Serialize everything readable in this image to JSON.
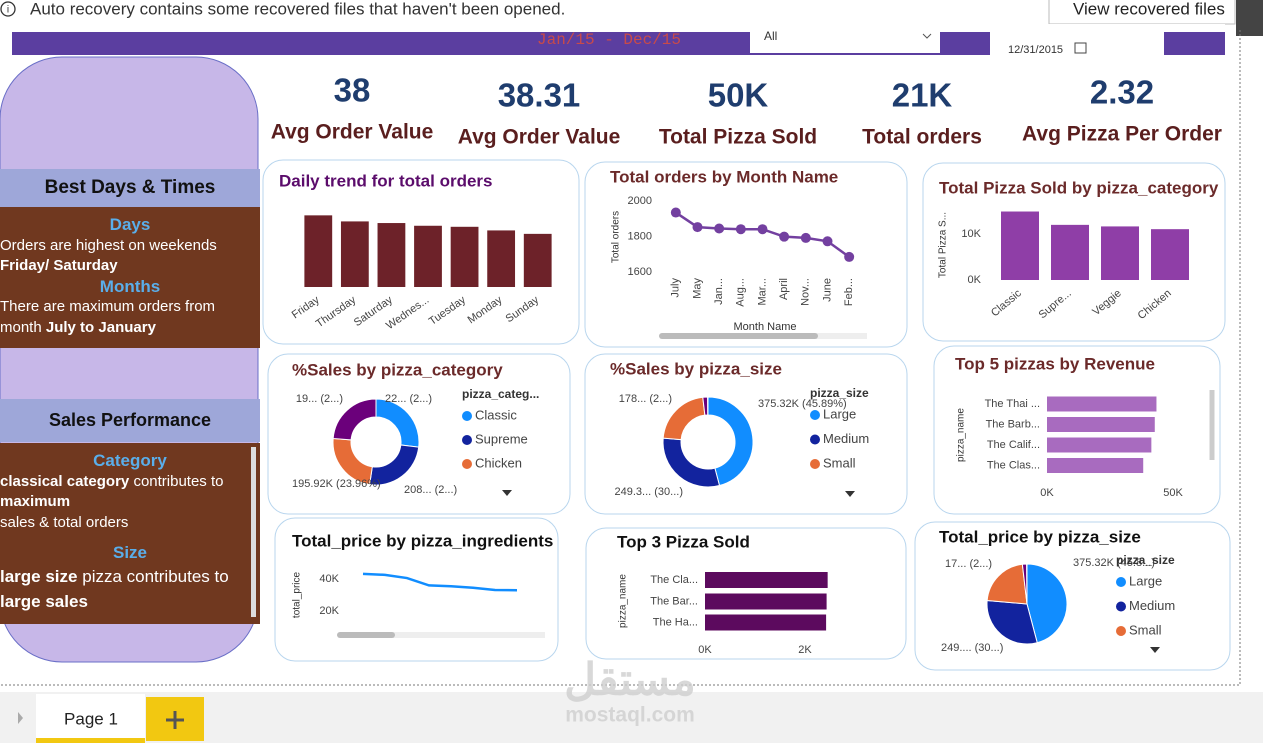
{
  "banner": {
    "message": "Auto recovery contains some recovered files that haven't been opened.",
    "button": "View recovered files"
  },
  "header": {
    "date_range": "Jan/15 - Dec/15",
    "filter": "All",
    "date": "12/31/2015"
  },
  "kpis": [
    {
      "value": "38",
      "label": "Avg Order Value"
    },
    {
      "value": "38.31",
      "label": "Avg Order Value"
    },
    {
      "value": "50K",
      "label": "Total Pizza Sold"
    },
    {
      "value": "21K",
      "label": "Total orders"
    },
    {
      "value": "2.32",
      "label": "Avg Pizza Per Order"
    }
  ],
  "sidebar": {
    "section1": {
      "title": "Best Days & Times",
      "days_heading": "Days",
      "days_text": "Orders are highest on weekends",
      "days_bold": "Friday/ Saturday",
      "months_heading": "Months",
      "months_text": "There are maximum orders from month",
      "months_bold": "July to January"
    },
    "section2": {
      "title": "Sales Performance",
      "category_heading": "Category",
      "category_bold": "classical category",
      "category_text": "contributes to",
      "category_bold2": "maximum",
      "category_text2": "sales & total orders",
      "size_heading": "Size",
      "size_bold": "large size",
      "size_text": "pizza contributes to",
      "size_bold2": "large sales"
    }
  },
  "chart_data": [
    {
      "type": "bar",
      "title": "Daily trend for total orders",
      "categories": [
        "Friday",
        "Thursday",
        "Saturday",
        "Wednes...",
        "Tuesday",
        "Monday",
        "Sunday"
      ],
      "values": [
        3538,
        3239,
        3158,
        3024,
        2973,
        2794,
        2624
      ],
      "ylim": [
        0,
        4000
      ],
      "color": "#6d2229"
    },
    {
      "type": "line",
      "title": "Total orders by Month Name",
      "x_label": "Month Name",
      "y_label": "Total orders",
      "categories": [
        "July",
        "May",
        "Jan...",
        "Aug...",
        "Mar...",
        "April",
        "Nov...",
        "June",
        "Feb..."
      ],
      "values": [
        1935,
        1853,
        1845,
        1841,
        1841,
        1799,
        1792,
        1773,
        1685
      ],
      "ylim": [
        1600,
        2000
      ],
      "yticks": [
        1600,
        1800,
        2000
      ],
      "color": "#7340a0"
    },
    {
      "type": "bar",
      "title": "Total Pizza Sold by pizza_category",
      "y_label": "Total Pizza S...",
      "categories": [
        "Classic",
        "Supre...",
        "Veggie",
        "Chicken"
      ],
      "values": [
        14888,
        11987,
        11649,
        11050
      ],
      "ylim": [
        0,
        15000
      ],
      "yticks": [
        {
          "value": 0,
          "label": "0K"
        },
        {
          "value": 10000,
          "label": "10K"
        }
      ],
      "color": "#8f3ea7"
    },
    {
      "type": "donut",
      "title": "%Sales by pizza_category",
      "legend_title": "pizza_categ...",
      "categories": [
        "Classic",
        "Supreme",
        "Chicken",
        null
      ],
      "values": [
        220053.1,
        208197,
        195919.5,
        193690.45
      ],
      "value_labels": [
        "22... (2...)",
        "208... (2...)",
        "195.92K (23.96%)",
        "19... (2...)"
      ],
      "colors": [
        "#118dff",
        "#12239e",
        "#e66c37",
        "#6b007b"
      ]
    },
    {
      "type": "donut",
      "title": "%Sales by pizza_size",
      "legend_title": "pizza_size",
      "categories": [
        "Large",
        "Medium",
        "Small",
        null,
        null
      ],
      "values": [
        375318.7,
        249382.25,
        178076.5,
        14076,
        1006.6
      ],
      "value_labels": [
        "375.32K (45.89%)",
        "249.3... (30...)",
        "178... (2...)",
        null,
        null
      ],
      "colors": [
        "#118dff",
        "#12239e",
        "#e66c37",
        "#6b007b",
        "#e044a7"
      ]
    },
    {
      "type": "hbar",
      "title": "Top 5 pizzas by Revenue",
      "y_label": "pizza_name",
      "categories": [
        "The Thai ...",
        "The Barb...",
        "The Calif...",
        "The Clas..."
      ],
      "values": [
        43434.25,
        42768,
        41409.5,
        38180.5
      ],
      "xlim": [
        0,
        50000
      ],
      "xticks": [
        {
          "value": 0,
          "label": "0K"
        },
        {
          "value": 50000,
          "label": "50K"
        }
      ],
      "color": "#a86bbf"
    },
    {
      "type": "line",
      "title": "Total_price by pizza_ingredients",
      "y_label": "total_price",
      "categories": [
        null,
        null,
        null,
        null,
        null,
        null,
        null,
        null
      ],
      "values": [
        43200,
        42600,
        40600,
        36000,
        35500,
        34500,
        33100,
        33000
      ],
      "ylim": [
        15000,
        50000
      ],
      "yticks": [
        {
          "value": 20000,
          "label": "20K"
        },
        {
          "value": 40000,
          "label": "40K"
        }
      ],
      "color": "#118dff"
    },
    {
      "type": "hbar",
      "title": "Top 3 Pizza Sold",
      "y_label": "pizza_name",
      "categories": [
        "The Cla...",
        "The Bar...",
        "The Ha..."
      ],
      "values": [
        2453,
        2432,
        2422
      ],
      "xlim": [
        0,
        2500
      ],
      "xticks": [
        {
          "value": 0,
          "label": "0K"
        },
        {
          "value": 2000,
          "label": "2K"
        }
      ],
      "color": "#5c0a5e"
    },
    {
      "type": "pie",
      "title": "Total_price by pizza_size",
      "legend_title": "pizza_size",
      "categories": [
        "Large",
        "Medium",
        "Small",
        null,
        null
      ],
      "values": [
        375318.7,
        249382.25,
        178076.5,
        14076,
        1006.6
      ],
      "value_labels": [
        "375.32K (45.8...)",
        "249.... (30...)",
        "17... (2...)",
        null,
        null
      ],
      "colors": [
        "#118dff",
        "#12239e",
        "#e66c37",
        "#6b007b",
        "#e044a7"
      ]
    }
  ],
  "tabs": {
    "page": "Page 1"
  },
  "watermark": {
    "logo": "مستقل",
    "url": "mostaql.com"
  }
}
